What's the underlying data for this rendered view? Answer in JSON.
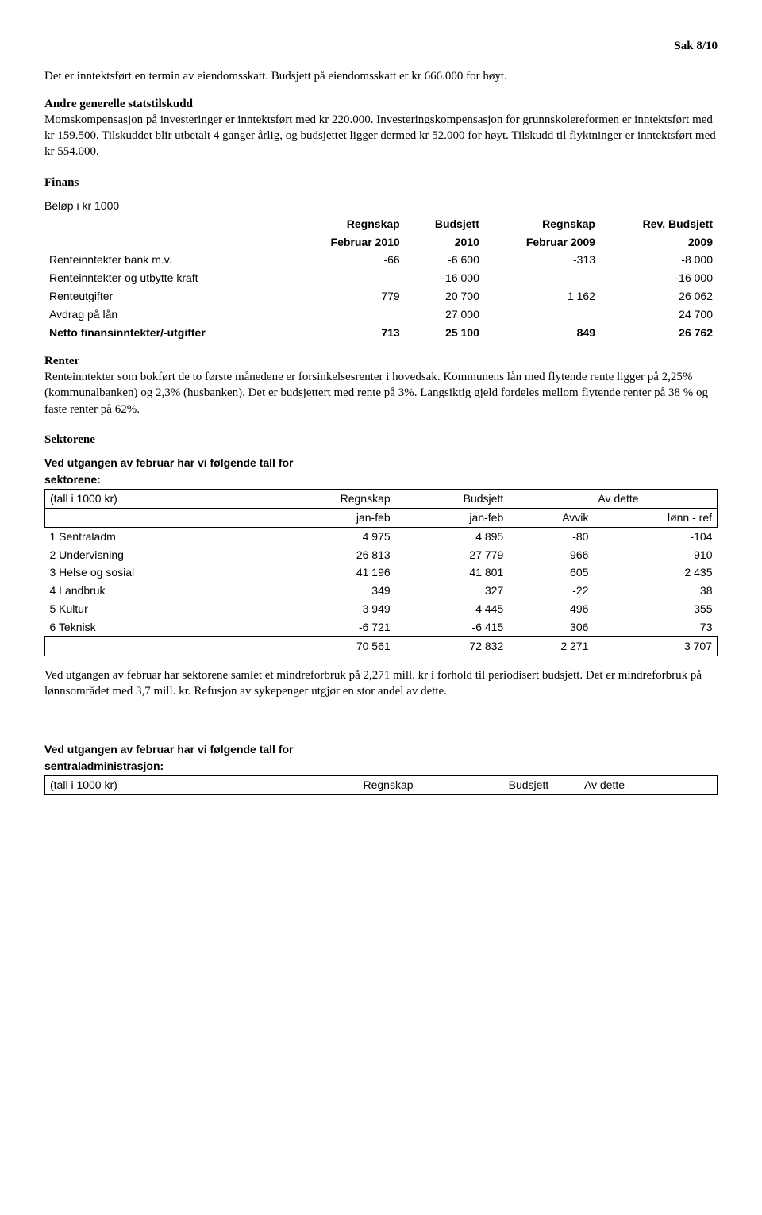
{
  "header": {
    "sak": "Sak 8/10"
  },
  "para1": "Det er inntektsført en termin av eiendomsskatt. Budsjett på eiendomsskatt er kr 666.000 for høyt.",
  "para2_title": "Andre generelle statstilskudd",
  "para2_body": "Momskompensasjon på investeringer er inntektsført med kr 220.000. Investeringskompensasjon for grunnskolereformen er inntektsført med kr 159.500. Tilskuddet blir utbetalt 4 ganger årlig, og budsjettet ligger dermed kr 52.000 for høyt. Tilskudd til flyktninger er inntektsført med kr 554.000.",
  "finans_heading": "Finans",
  "finans": {
    "caption": "Beløp i kr 1000",
    "cols_top": [
      "",
      "Regnskap",
      "Budsjett",
      "Regnskap",
      "Rev. Budsjett"
    ],
    "cols_bot": [
      "",
      "Februar 2010",
      "2010",
      "Februar 2009",
      "2009"
    ],
    "rows": [
      {
        "label": "Renteinntekter bank m.v.",
        "c1": "-66",
        "c2": "-6 600",
        "c3": "-313",
        "c4": "-8 000"
      },
      {
        "label": "Renteinntekter og utbytte kraft",
        "c1": "",
        "c2": "-16 000",
        "c3": "",
        "c4": "-16 000"
      },
      {
        "label": "Renteutgifter",
        "c1": "779",
        "c2": "20 700",
        "c3": "1 162",
        "c4": "26 062"
      },
      {
        "label": "Avdrag på lån",
        "c1": "",
        "c2": "27 000",
        "c3": "",
        "c4": "24 700"
      }
    ],
    "total": {
      "label": "Netto finansinntekter/-utgifter",
      "c1": "713",
      "c2": "25 100",
      "c3": "849",
      "c4": "26 762"
    }
  },
  "renter_heading": "Renter",
  "renter_body": "Renteinntekter som bokført de to første månedene er forsinkelsesrenter i hovedsak. Kommunens lån med flytende rente ligger på 2,25% (kommunalbanken) og 2,3% (husbanken). Det er budsjettert med rente på 3%. Langsiktig gjeld fordeles mellom flytende renter på 38 % og faste renter på 62%.",
  "sektorene_heading": "Sektorene",
  "sekt": {
    "caption1": "Ved utgangen av februar har vi følgende tall for",
    "caption2": "sektorene:",
    "hdr1": [
      "(tall i 1000 kr)",
      "Regnskap",
      "Budsjett",
      "",
      "Av dette"
    ],
    "hdr2": [
      "",
      "jan-feb",
      "jan-feb",
      "Avvik",
      "lønn - ref"
    ],
    "rows": [
      {
        "label": "1 Sentraladm",
        "c1": "4 975",
        "c2": "4 895",
        "c3": "-80",
        "c4": "-104"
      },
      {
        "label": "2 Undervisning",
        "c1": "26 813",
        "c2": "27 779",
        "c3": "966",
        "c4": "910"
      },
      {
        "label": "3 Helse og sosial",
        "c1": "41 196",
        "c2": "41 801",
        "c3": "605",
        "c4": "2 435"
      },
      {
        "label": "4 Landbruk",
        "c1": "349",
        "c2": "327",
        "c3": "-22",
        "c4": "38"
      },
      {
        "label": "5 Kultur",
        "c1": "3 949",
        "c2": "4 445",
        "c3": "496",
        "c4": "355"
      },
      {
        "label": "6 Teknisk",
        "c1": "-6 721",
        "c2": "-6 415",
        "c3": "306",
        "c4": "73"
      }
    ],
    "total": {
      "label": "",
      "c1": "70 561",
      "c2": "72 832",
      "c3": "2 271",
      "c4": "3 707"
    }
  },
  "sekt_para": "Ved utgangen av februar har sektorene samlet et mindreforbruk på 2,271 mill. kr i forhold til periodisert budsjett. Det er mindreforbruk på lønnsområdet med 3,7 mill. kr. Refusjon av sykepenger utgjør en stor andel av dette.",
  "sentral": {
    "caption1": "Ved utgangen av februar har vi følgende tall for",
    "caption2": "sentraladministrasjon:",
    "hdr1": [
      "(tall i 1000 kr)",
      "Regnskap",
      "Budsjett",
      "",
      "Av dette"
    ]
  }
}
